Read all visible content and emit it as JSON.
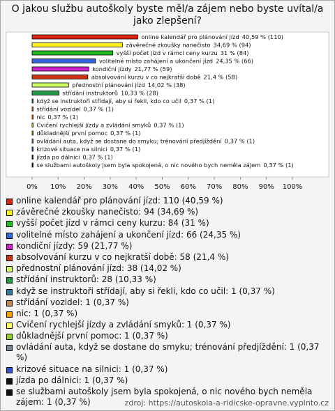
{
  "chart_data": {
    "type": "bar",
    "orientation": "horizontal",
    "title": "O jakou službu autoškoly byste měl/a zájem nebo byste uvítal/a jako zlepšení?",
    "categories": [
      "online kalendář pro plánování jízd",
      "závěrečné zkoušky nanečisto",
      "vyšší počet jízd v rámci ceny kurzu",
      "volitelné místo zahájení a ukončení jízd",
      "kondiční jízdy",
      "absolvování kurzu v co nejkratší době",
      "přednostní plánování jízd",
      "střídání instruktorů",
      "když se instruktoři střídají, aby si řekli, kdo co učil",
      "střídání vozidel",
      "nic",
      "Cvičení rychlejší jízdy a zvládání smyků",
      "důkladnější první pomoc",
      "ovládání auta, když se dostane do smyku; trénování předjíždění",
      "krizové situace na silnici",
      "jízda po dálnici",
      "se službami autoškoly jsem byla spokojená, o nic nového bych neměla zájem"
    ],
    "values": [
      40.59,
      34.69,
      31,
      24.35,
      21.77,
      21.4,
      14.02,
      10.33,
      0.37,
      0.37,
      0.37,
      0.37,
      0.37,
      0.37,
      0.37,
      0.37,
      0.37
    ],
    "value_labels": [
      "40,59 % (110)",
      "34,69 % (94)",
      "31 % (84)",
      "24,35 % (66)",
      "21,77 % (59)",
      "21,4 % (58)",
      "14,02 % (38)",
      "10,33 % (28)",
      "0,37 % (1)",
      "0,37 % (1)",
      "0,37 % (1)",
      "0,37 % (1)",
      "0,37 % (1)",
      "0,37 % (1)",
      "0,37 % (1)",
      "0,37 % (1)",
      "0,37 % (1)"
    ],
    "colors": [
      "#dd2211",
      "#ffee22",
      "#22bb22",
      "#3366dd",
      "#cc22cc",
      "#cc3311",
      "#ccff66",
      "#229944",
      "#337799",
      "#bb8855",
      "#ff9900",
      "#ffff66",
      "#99cc33",
      "#778899",
      "#3355cc",
      "#111111",
      "#111111"
    ],
    "legend_labels": [
      "online kalendář pro plánování jízd: 110 (40,59 %)",
      "závěrečné zkoušky nanečisto: 94 (34,69 %)",
      "vyšší počet jízd v rámci ceny kurzu: 84 (31 %)",
      "volitelné místo zahájení a ukončení jízd: 66 (24,35 %)",
      "kondiční jízdy: 59 (21,77 %)",
      "absolvování kurzu v co nejkratší době: 58 (21,4 %)",
      "přednostní plánování jízd: 38 (14,02 %)",
      "střídání instruktorů: 28 (10,33 %)",
      "když se instruktoři střídají, aby si řekli, kdo co učil: 1 (0,37 %)",
      "střídání vozidel: 1 (0,37 %)",
      "nic: 1 (0,37 %)",
      "Cvičení rychlejší jízdy a zvládání smyků: 1 (0,37 %)",
      "důkladnější první pomoc: 1 (0,37 %)",
      "ovládání auta, když se dostane do smyku; trénování předjíždění: 1 (0,37 %)",
      "krizové situace na silnici: 1 (0,37 %)",
      "jízda po dálnici: 1 (0,37 %)",
      "se službami autoškoly jsem byla spokojená, o nic nového bych neměla zájem: 1 (0,37 %)"
    ],
    "xlim": [
      0,
      100
    ],
    "xticks": [
      {
        "value": 0,
        "label": "0%"
      },
      {
        "value": 10,
        "label": "10%"
      },
      {
        "value": 20,
        "label": "20%"
      },
      {
        "value": 30,
        "label": "30%"
      },
      {
        "value": 40,
        "label": "40%"
      },
      {
        "value": 50,
        "label": "50%"
      },
      {
        "value": 60,
        "label": "60%"
      },
      {
        "value": 70,
        "label": "70%"
      },
      {
        "value": 80,
        "label": "80%"
      },
      {
        "value": 90,
        "label": "90%"
      },
      {
        "value": 100,
        "label": "100%"
      }
    ],
    "source": "zdroj: https://autoskola-a-ridicske-opravne.vyplnto.cz"
  }
}
